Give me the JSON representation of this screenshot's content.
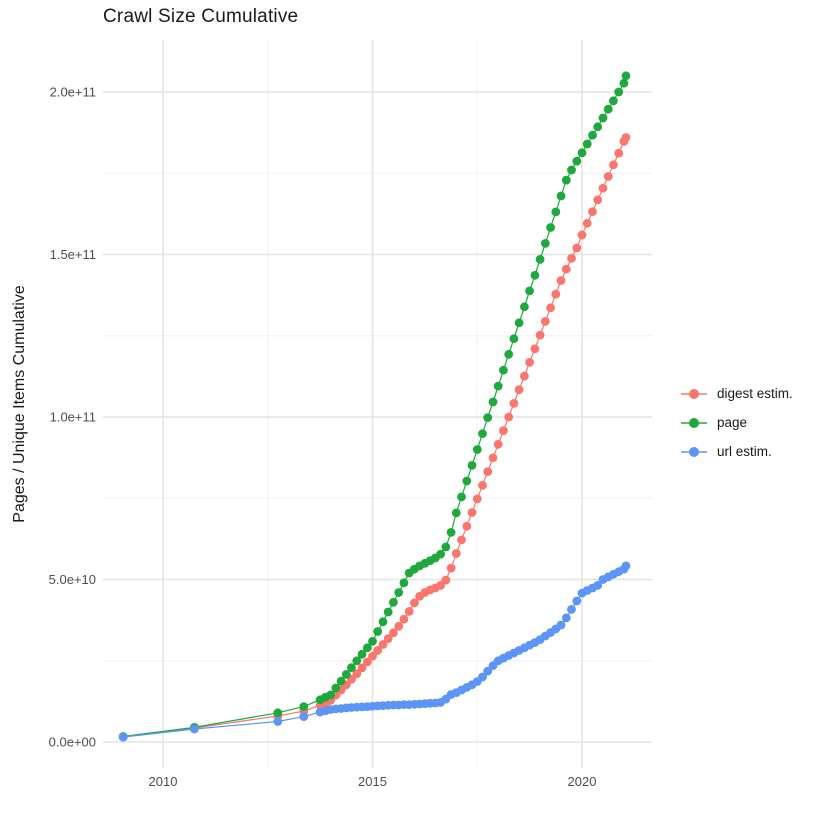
{
  "title": "Crawl Size Cumulative",
  "axes": {
    "y_title": "Pages / Unique Items Cumulative",
    "x_tick_labels": [
      "2010",
      "2015",
      "2020"
    ],
    "y_tick_labels": [
      "0.0e+00",
      "5.0e+10",
      "1.0e+11",
      "1.5e+11",
      "2.0e+11"
    ]
  },
  "legend": {
    "items": [
      {
        "label": "digest estim.",
        "series": "digest"
      },
      {
        "label": "page",
        "series": "page"
      },
      {
        "label": "url estim.",
        "series": "url"
      }
    ]
  },
  "colors": {
    "digest": "#F8766D",
    "page": "#1FA83E",
    "url": "#5C95F6",
    "grid_major": "#E4E4E4",
    "grid_minor": "#F0F0F0",
    "tick_text": "#4D4D4D",
    "title_text": "#1A1A1A"
  },
  "chart_data": {
    "type": "line",
    "title": "Crawl Size Cumulative",
    "xlabel": "",
    "ylabel": "Pages / Unique Items Cumulative",
    "x_unit": "year (decimal)",
    "y_unit_multiplier": 10000000000,
    "x_ticks": [
      {
        "label": "2010",
        "year": 2010
      },
      {
        "label": "2015",
        "year": 2015
      },
      {
        "label": "2020",
        "year": 2020
      }
    ],
    "x_minor_breaks": [
      2012.5,
      2017.5
    ],
    "y_ticks": [
      {
        "label": "0.0e+00",
        "value": 0
      },
      {
        "label": "5.0e+10",
        "value": 5
      },
      {
        "label": "1.0e+11",
        "value": 10
      },
      {
        "label": "1.5e+11",
        "value": 15
      },
      {
        "label": "2.0e+11",
        "value": 20
      }
    ],
    "y_minor_breaks": [
      2.5,
      7.5,
      12.5,
      17.5
    ],
    "x_range": [
      2008.57,
      2021.67
    ],
    "y_range_e10": [
      -0.8,
      21.6
    ],
    "grid": true,
    "legend_position": "right",
    "series": [
      {
        "name": "digest estim.",
        "key": "digest",
        "zorder": 3,
        "points": [
          [
            2009.05,
            0.16
          ],
          [
            2010.75,
            0.43
          ],
          [
            2012.74,
            0.8
          ],
          [
            2013.36,
            0.95
          ],
          [
            2013.75,
            1.13
          ],
          [
            2013.875,
            1.2
          ],
          [
            2014.0,
            1.28
          ],
          [
            2014.125,
            1.44
          ],
          [
            2014.25,
            1.6
          ],
          [
            2014.375,
            1.76
          ],
          [
            2014.5,
            1.93
          ],
          [
            2014.625,
            2.1
          ],
          [
            2014.75,
            2.28
          ],
          [
            2014.875,
            2.46
          ],
          [
            2015.0,
            2.64
          ],
          [
            2015.125,
            2.82
          ],
          [
            2015.25,
            3.0
          ],
          [
            2015.375,
            3.18
          ],
          [
            2015.5,
            3.36
          ],
          [
            2015.625,
            3.56
          ],
          [
            2015.75,
            3.78
          ],
          [
            2015.875,
            4.02
          ],
          [
            2016.0,
            4.28
          ],
          [
            2016.125,
            4.48
          ],
          [
            2016.25,
            4.6
          ],
          [
            2016.375,
            4.68
          ],
          [
            2016.5,
            4.74
          ],
          [
            2016.625,
            4.82
          ],
          [
            2016.75,
            4.98
          ],
          [
            2016.875,
            5.35
          ],
          [
            2017.0,
            5.8
          ],
          [
            2017.125,
            6.22
          ],
          [
            2017.25,
            6.64
          ],
          [
            2017.375,
            7.06
          ],
          [
            2017.5,
            7.48
          ],
          [
            2017.625,
            7.9
          ],
          [
            2017.75,
            8.32
          ],
          [
            2017.875,
            8.74
          ],
          [
            2018.0,
            9.16
          ],
          [
            2018.125,
            9.58
          ],
          [
            2018.25,
            10.0
          ],
          [
            2018.375,
            10.42
          ],
          [
            2018.5,
            10.84
          ],
          [
            2018.625,
            11.26
          ],
          [
            2018.75,
            11.68
          ],
          [
            2018.875,
            12.1
          ],
          [
            2019.0,
            12.52
          ],
          [
            2019.125,
            12.94
          ],
          [
            2019.25,
            13.36
          ],
          [
            2019.375,
            13.78
          ],
          [
            2019.5,
            14.2
          ],
          [
            2019.625,
            14.55
          ],
          [
            2019.75,
            14.88
          ],
          [
            2019.875,
            15.2
          ],
          [
            2020.0,
            15.6
          ],
          [
            2020.125,
            15.96
          ],
          [
            2020.25,
            16.32
          ],
          [
            2020.375,
            16.68
          ],
          [
            2020.5,
            17.04
          ],
          [
            2020.625,
            17.4
          ],
          [
            2020.75,
            17.76
          ],
          [
            2020.875,
            18.12
          ],
          [
            2021.0,
            18.48
          ],
          [
            2021.05,
            18.6
          ]
        ]
      },
      {
        "name": "page",
        "key": "page",
        "zorder": 2,
        "points": [
          [
            2009.05,
            0.17
          ],
          [
            2010.75,
            0.45
          ],
          [
            2012.74,
            0.9
          ],
          [
            2013.36,
            1.09
          ],
          [
            2013.75,
            1.3
          ],
          [
            2013.875,
            1.38
          ],
          [
            2014.0,
            1.45
          ],
          [
            2014.125,
            1.66
          ],
          [
            2014.25,
            1.87
          ],
          [
            2014.375,
            2.08
          ],
          [
            2014.5,
            2.29
          ],
          [
            2014.625,
            2.5
          ],
          [
            2014.75,
            2.7
          ],
          [
            2014.875,
            2.9
          ],
          [
            2015.0,
            3.1
          ],
          [
            2015.125,
            3.4
          ],
          [
            2015.25,
            3.7
          ],
          [
            2015.375,
            4.0
          ],
          [
            2015.5,
            4.3
          ],
          [
            2015.625,
            4.6
          ],
          [
            2015.75,
            4.9
          ],
          [
            2015.875,
            5.2
          ],
          [
            2016.0,
            5.32
          ],
          [
            2016.125,
            5.42
          ],
          [
            2016.25,
            5.5
          ],
          [
            2016.375,
            5.58
          ],
          [
            2016.5,
            5.66
          ],
          [
            2016.625,
            5.78
          ],
          [
            2016.75,
            6.0
          ],
          [
            2016.875,
            6.45
          ],
          [
            2017.0,
            7.05
          ],
          [
            2017.125,
            7.54
          ],
          [
            2017.25,
            8.03
          ],
          [
            2017.375,
            8.51
          ],
          [
            2017.5,
            9.0
          ],
          [
            2017.625,
            9.49
          ],
          [
            2017.75,
            9.98
          ],
          [
            2017.875,
            10.46
          ],
          [
            2018.0,
            10.95
          ],
          [
            2018.125,
            11.44
          ],
          [
            2018.25,
            11.93
          ],
          [
            2018.375,
            12.41
          ],
          [
            2018.5,
            12.9
          ],
          [
            2018.625,
            13.39
          ],
          [
            2018.75,
            13.88
          ],
          [
            2018.875,
            14.36
          ],
          [
            2019.0,
            14.85
          ],
          [
            2019.125,
            15.34
          ],
          [
            2019.25,
            15.83
          ],
          [
            2019.375,
            16.31
          ],
          [
            2019.5,
            16.8
          ],
          [
            2019.625,
            17.29
          ],
          [
            2019.75,
            17.6
          ],
          [
            2019.875,
            17.87
          ],
          [
            2020.0,
            18.13
          ],
          [
            2020.125,
            18.4
          ],
          [
            2020.25,
            18.67
          ],
          [
            2020.375,
            18.93
          ],
          [
            2020.5,
            19.2
          ],
          [
            2020.625,
            19.47
          ],
          [
            2020.75,
            19.73
          ],
          [
            2020.875,
            20.0
          ],
          [
            2021.0,
            20.27
          ],
          [
            2021.05,
            20.5
          ]
        ]
      },
      {
        "name": "url estim.",
        "key": "url",
        "zorder": 1,
        "points": [
          [
            2009.05,
            0.15
          ],
          [
            2010.75,
            0.4
          ],
          [
            2012.74,
            0.63
          ],
          [
            2013.36,
            0.78
          ],
          [
            2013.75,
            0.92
          ],
          [
            2013.875,
            0.96
          ],
          [
            2014.0,
            1.0
          ],
          [
            2014.125,
            1.02
          ],
          [
            2014.25,
            1.03
          ],
          [
            2014.375,
            1.05
          ],
          [
            2014.5,
            1.06
          ],
          [
            2014.625,
            1.07
          ],
          [
            2014.75,
            1.08
          ],
          [
            2014.875,
            1.09
          ],
          [
            2015.0,
            1.1
          ],
          [
            2015.125,
            1.11
          ],
          [
            2015.25,
            1.12
          ],
          [
            2015.375,
            1.13
          ],
          [
            2015.5,
            1.14
          ],
          [
            2015.625,
            1.14
          ],
          [
            2015.75,
            1.15
          ],
          [
            2015.875,
            1.15
          ],
          [
            2016.0,
            1.16
          ],
          [
            2016.125,
            1.17
          ],
          [
            2016.25,
            1.18
          ],
          [
            2016.375,
            1.19
          ],
          [
            2016.5,
            1.2
          ],
          [
            2016.625,
            1.22
          ],
          [
            2016.75,
            1.32
          ],
          [
            2016.875,
            1.46
          ],
          [
            2017.0,
            1.52
          ],
          [
            2017.125,
            1.6
          ],
          [
            2017.25,
            1.68
          ],
          [
            2017.375,
            1.76
          ],
          [
            2017.5,
            1.86
          ],
          [
            2017.625,
            2.0
          ],
          [
            2017.75,
            2.18
          ],
          [
            2017.875,
            2.35
          ],
          [
            2018.0,
            2.5
          ],
          [
            2018.125,
            2.58
          ],
          [
            2018.25,
            2.66
          ],
          [
            2018.375,
            2.74
          ],
          [
            2018.5,
            2.82
          ],
          [
            2018.625,
            2.9
          ],
          [
            2018.75,
            2.98
          ],
          [
            2018.875,
            3.06
          ],
          [
            2019.0,
            3.15
          ],
          [
            2019.125,
            3.26
          ],
          [
            2019.25,
            3.37
          ],
          [
            2019.375,
            3.48
          ],
          [
            2019.5,
            3.6
          ],
          [
            2019.625,
            3.82
          ],
          [
            2019.75,
            4.08
          ],
          [
            2019.875,
            4.34
          ],
          [
            2020.0,
            4.58
          ],
          [
            2020.125,
            4.66
          ],
          [
            2020.25,
            4.74
          ],
          [
            2020.375,
            4.82
          ],
          [
            2020.5,
            5.0
          ],
          [
            2020.625,
            5.08
          ],
          [
            2020.75,
            5.16
          ],
          [
            2020.875,
            5.24
          ],
          [
            2021.0,
            5.32
          ],
          [
            2021.05,
            5.42
          ]
        ]
      }
    ]
  }
}
